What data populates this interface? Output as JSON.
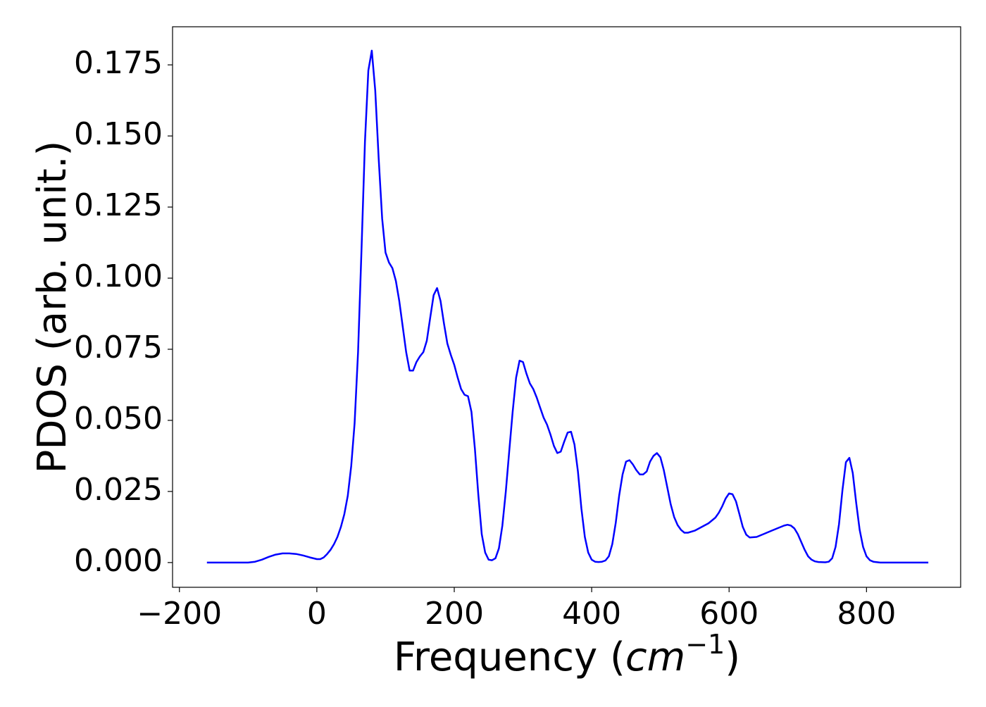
{
  "chart_data": {
    "type": "line",
    "x_label": [
      "Frequency (",
      "cm",
      "−1",
      ")"
    ],
    "y_label": "PDOS (arb. unit.)",
    "xlim": [
      -210,
      937
    ],
    "ylim": [
      -0.0087,
      0.1884
    ],
    "xticks": [
      {
        "value": -200,
        "label": "−200"
      },
      0,
      200,
      400,
      600,
      800
    ],
    "yticks": [
      {
        "value": 0,
        "label": "0.000"
      },
      {
        "value": 0.025,
        "label": "0.025"
      },
      {
        "value": 0.05,
        "label": "0.050"
      },
      {
        "value": 0.075,
        "label": "0.075"
      },
      {
        "value": 0.1,
        "label": "0.100"
      },
      {
        "value": 0.125,
        "label": "0.125"
      },
      {
        "value": 0.15,
        "label": "0.150"
      },
      {
        "value": 0.175,
        "label": "0.175"
      }
    ],
    "grid": false,
    "x": [
      -160,
      -100,
      -90,
      -80,
      -70,
      -60,
      -50,
      -40,
      -30,
      -20,
      -10,
      0,
      5,
      10,
      15,
      20,
      25,
      30,
      35,
      40,
      45,
      50,
      55,
      60,
      65,
      70,
      75,
      80,
      85,
      90,
      95,
      100,
      105,
      110,
      115,
      120,
      125,
      130,
      135,
      140,
      145,
      150,
      155,
      160,
      165,
      170,
      175,
      180,
      185,
      190,
      195,
      200,
      205,
      210,
      215,
      220,
      225,
      230,
      235,
      240,
      245,
      250,
      255,
      260,
      265,
      270,
      275,
      280,
      285,
      290,
      295,
      300,
      305,
      310,
      315,
      320,
      325,
      330,
      335,
      340,
      345,
      350,
      355,
      360,
      365,
      370,
      375,
      380,
      385,
      390,
      395,
      400,
      405,
      410,
      415,
      420,
      425,
      430,
      435,
      440,
      445,
      450,
      455,
      460,
      465,
      470,
      475,
      480,
      485,
      490,
      495,
      500,
      505,
      510,
      515,
      520,
      525,
      530,
      535,
      540,
      550,
      560,
      570,
      580,
      585,
      590,
      595,
      600,
      605,
      610,
      615,
      620,
      625,
      630,
      640,
      650,
      660,
      670,
      680,
      685,
      690,
      695,
      700,
      705,
      710,
      715,
      720,
      725,
      730,
      740,
      745,
      750,
      755,
      760,
      765,
      770,
      775,
      780,
      785,
      790,
      795,
      800,
      805,
      810,
      820,
      850,
      890
    ],
    "series": [
      {
        "name": "PDOS",
        "color": "#0000ff",
        "values": [
          0,
          0,
          0.0003,
          0.001,
          0.002,
          0.0028,
          0.0032,
          0.0032,
          0.003,
          0.0025,
          0.0018,
          0.0012,
          0.0012,
          0.0018,
          0.003,
          0.0045,
          0.0065,
          0.009,
          0.0125,
          0.017,
          0.0235,
          0.034,
          0.049,
          0.074,
          0.11,
          0.148,
          0.173,
          0.18,
          0.166,
          0.142,
          0.121,
          0.109,
          0.1055,
          0.1035,
          0.099,
          0.092,
          0.083,
          0.074,
          0.0675,
          0.0675,
          0.0705,
          0.0725,
          0.074,
          0.078,
          0.086,
          0.094,
          0.0965,
          0.092,
          0.084,
          0.077,
          0.073,
          0.0695,
          0.065,
          0.061,
          0.059,
          0.0585,
          0.053,
          0.04,
          0.024,
          0.01,
          0.0035,
          0.001,
          0.0008,
          0.0015,
          0.005,
          0.013,
          0.025,
          0.039,
          0.053,
          0.065,
          0.071,
          0.0705,
          0.0665,
          0.063,
          0.061,
          0.058,
          0.0545,
          0.051,
          0.0485,
          0.045,
          0.041,
          0.0385,
          0.039,
          0.0425,
          0.0457,
          0.046,
          0.0415,
          0.032,
          0.019,
          0.009,
          0.0035,
          0.001,
          0.0003,
          0.0002,
          0.0003,
          0.0007,
          0.0022,
          0.0065,
          0.014,
          0.0235,
          0.031,
          0.0355,
          0.036,
          0.0345,
          0.0325,
          0.031,
          0.031,
          0.032,
          0.0355,
          0.0375,
          0.0385,
          0.037,
          0.0325,
          0.0265,
          0.0205,
          0.016,
          0.0132,
          0.0115,
          0.0105,
          0.0105,
          0.0112,
          0.0125,
          0.0138,
          0.0158,
          0.0175,
          0.0198,
          0.0225,
          0.0243,
          0.024,
          0.0215,
          0.017,
          0.0125,
          0.0098,
          0.0088,
          0.009,
          0.01,
          0.011,
          0.012,
          0.013,
          0.0133,
          0.013,
          0.012,
          0.01,
          0.0072,
          0.0045,
          0.0022,
          0.001,
          0.0004,
          0.0002,
          0.0001,
          0.0003,
          0.0015,
          0.0055,
          0.0135,
          0.0255,
          0.0353,
          0.0368,
          0.0315,
          0.021,
          0.0115,
          0.0055,
          0.0022,
          0.0008,
          0.0003,
          0,
          0,
          0
        ]
      }
    ]
  }
}
